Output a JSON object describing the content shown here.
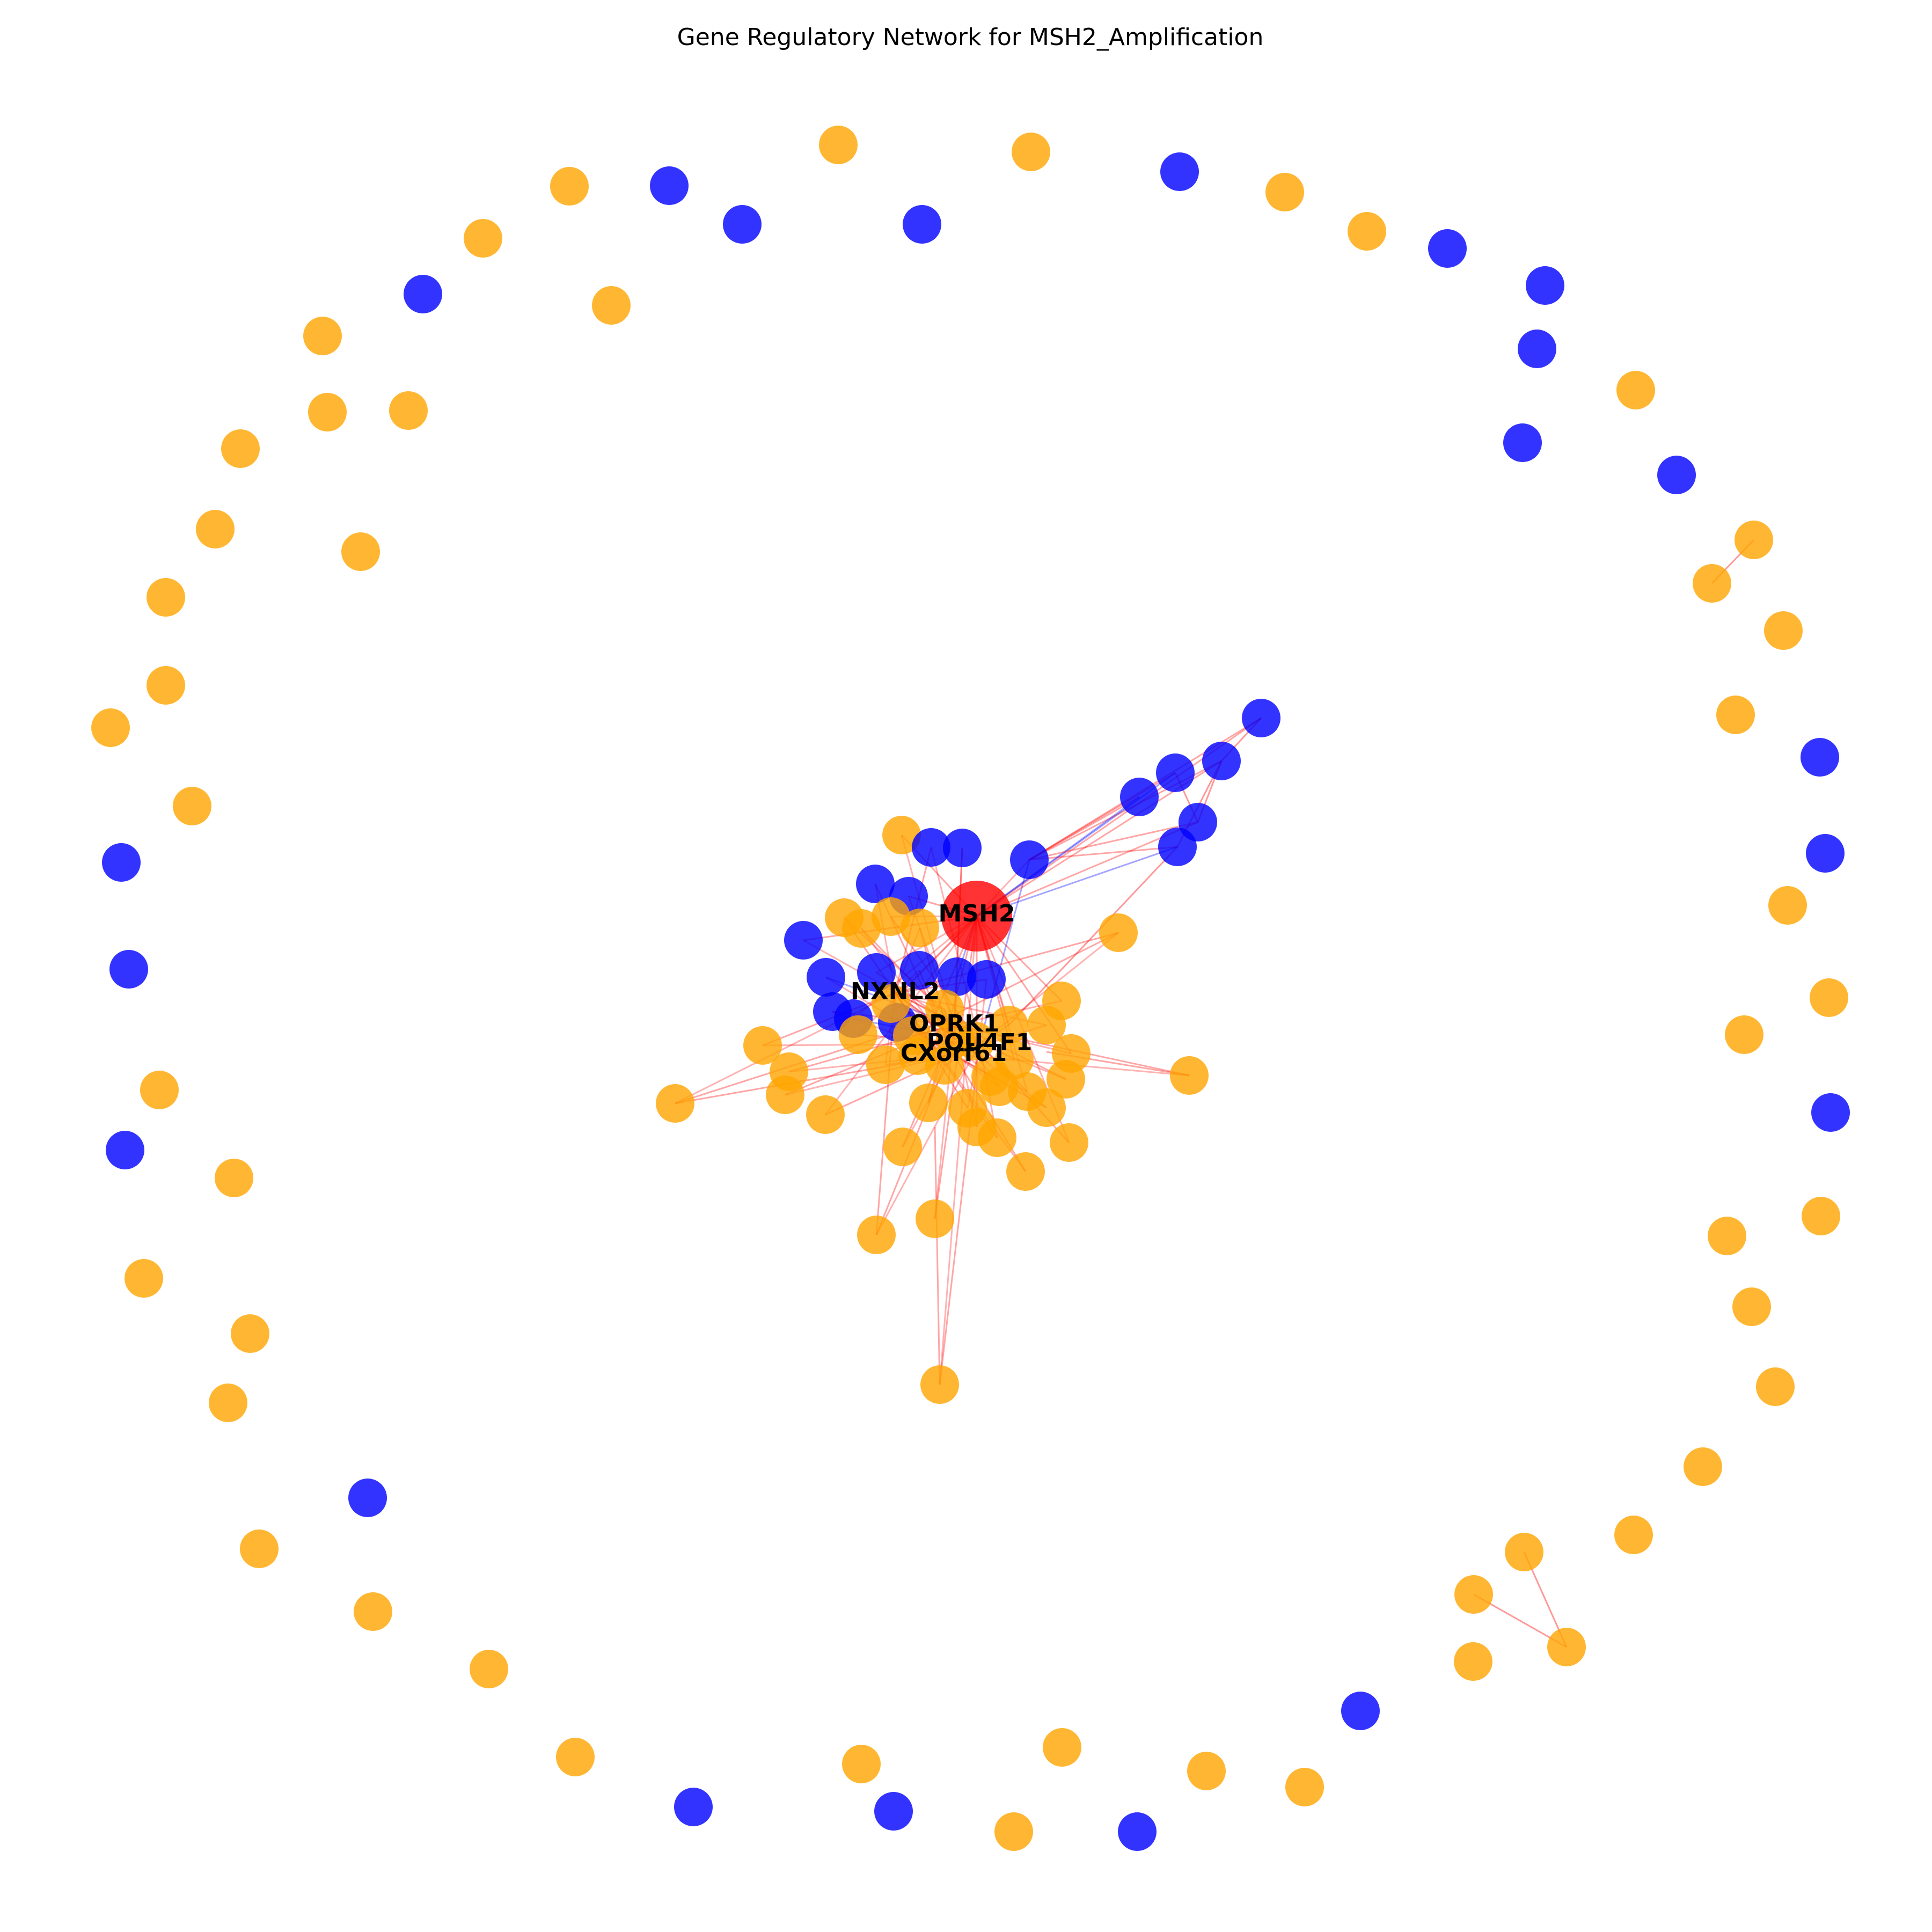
{
  "title": "Gene Regulatory Network for MSH2_Amplification",
  "colors": {
    "center_node": "#ff0000",
    "up_node": "#ffa500",
    "down_node": "#0000ff",
    "activation_edge": "#ff0000",
    "repression_edge": "#0000ff"
  },
  "labels": {
    "msh2": "MSH2",
    "nxnl2": "NXNL2",
    "oprk1": "OPRK1",
    "pou4f1": "POU4F1",
    "cxorf61": "CXorf61"
  }
}
